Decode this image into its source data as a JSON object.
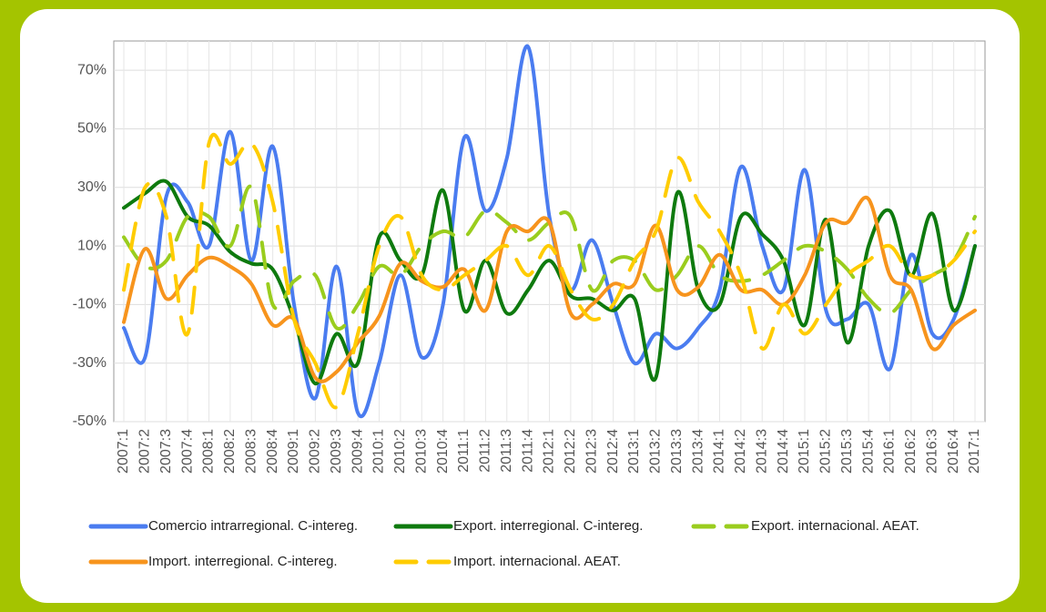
{
  "chart_data": {
    "type": "line",
    "categories": [
      "2007:1",
      "2007:2",
      "2007:3",
      "2007:4",
      "2008:1",
      "2008:2",
      "2008:3",
      "2008:4",
      "2009:1",
      "2009:2",
      "2009:3",
      "2009:4",
      "2010:1",
      "2010:2",
      "2010:3",
      "2010:4",
      "2011:1",
      "2011:2",
      "2011:3",
      "2011:4",
      "2012:1",
      "2012:2",
      "2012:3",
      "2012:4",
      "2013:1",
      "2013:2",
      "2013:3",
      "2013:4",
      "2014:1",
      "2014:2",
      "2014:3",
      "2014:4",
      "2015:1",
      "2015:2",
      "2015:3",
      "2015:4",
      "2016:1",
      "2016:2",
      "2016:3",
      "2016:4",
      "2017:1"
    ],
    "series": [
      {
        "name": "Comercio intrarregional. C-intereg.",
        "color": "#4a7cf0",
        "line_style": "solid",
        "values": [
          -18,
          -28,
          27,
          25,
          10,
          49,
          5,
          44,
          -10,
          -42,
          3,
          -47,
          -30,
          0,
          -28,
          -10,
          47,
          22,
          40,
          78,
          20,
          -5,
          12,
          -10,
          -30,
          -20,
          -25,
          -18,
          -5,
          37,
          10,
          -5,
          36,
          -12,
          -15,
          -10,
          -32,
          7,
          -20,
          -15,
          10
        ]
      },
      {
        "name": "Export. interregional. C-intereg.",
        "color": "#0e7a0e",
        "line_style": "solid",
        "values": [
          23,
          28,
          32,
          20,
          17,
          8,
          4,
          2,
          -15,
          -37,
          -20,
          -30,
          13,
          5,
          0,
          29,
          -12,
          5,
          -13,
          -5,
          5,
          -7,
          -8,
          -12,
          -8,
          -35,
          28,
          -5,
          -10,
          20,
          14,
          5,
          -17,
          19,
          -23,
          10,
          22,
          0,
          21,
          -12,
          10
        ]
      },
      {
        "name": "Export. internacional. AEAT.",
        "color": "#9acd1e",
        "line_style": "dashed",
        "values": [
          13,
          3,
          5,
          20,
          20,
          10,
          30,
          -10,
          -2,
          0,
          -18,
          -10,
          3,
          0,
          10,
          15,
          13,
          22,
          18,
          12,
          18,
          20,
          -5,
          5,
          5,
          -5,
          0,
          10,
          0,
          -2,
          0,
          5,
          10,
          8,
          2,
          -8,
          -13,
          -5,
          0,
          5,
          20
        ]
      },
      {
        "name": "Import. interregional. C-intereg.",
        "color": "#f7941d",
        "line_style": "solid",
        "values": [
          -16,
          9,
          -8,
          0,
          6,
          3,
          -3,
          -17,
          -15,
          -35,
          -33,
          -23,
          -14,
          4,
          -2,
          -4,
          2,
          -12,
          15,
          15,
          18,
          -13,
          -10,
          -3,
          -3,
          17,
          -5,
          -4,
          7,
          -5,
          -5,
          -10,
          0,
          18,
          18,
          26,
          0,
          -5,
          -25,
          -17,
          -12
        ]
      },
      {
        "name": "Import. internacional. AEAT.",
        "color": "#ffcc00",
        "line_style": "dashed",
        "values": [
          -5,
          30,
          20,
          -20,
          45,
          38,
          45,
          25,
          -15,
          -30,
          -45,
          -20,
          10,
          20,
          0,
          -5,
          0,
          5,
          10,
          0,
          10,
          -5,
          -15,
          -10,
          5,
          15,
          40,
          25,
          15,
          0,
          -25,
          -10,
          -20,
          -10,
          0,
          5,
          10,
          0,
          0,
          5,
          15
        ]
      }
    ],
    "ylim": [
      -50,
      80
    ],
    "yticks": [
      {
        "value": -50,
        "label": "-50%"
      },
      {
        "value": -30,
        "label": "-30%"
      },
      {
        "value": -10,
        "label": "-10%"
      },
      {
        "value": 10,
        "label": "10%"
      },
      {
        "value": 30,
        "label": "30%"
      },
      {
        "value": 50,
        "label": "50%"
      },
      {
        "value": 70,
        "label": "70%"
      }
    ],
    "grid": true
  }
}
